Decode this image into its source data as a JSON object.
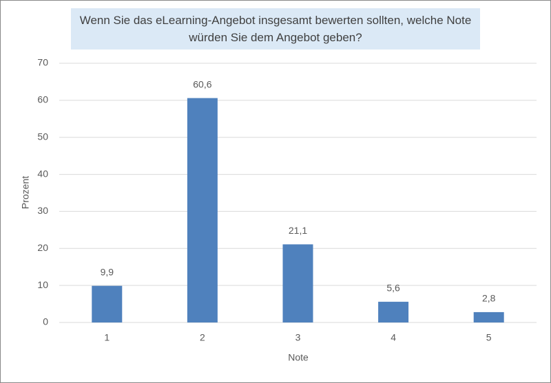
{
  "chart_data": {
    "type": "bar",
    "title": "Wenn Sie das eLearning-Angebot insgesamt bewerten sollten, welche Note würden Sie dem Angebot geben?",
    "x_label": "Note",
    "y_label": "Prozent",
    "categories": [
      "1",
      "2",
      "3",
      "4",
      "5"
    ],
    "values": [
      9.9,
      60.6,
      21.1,
      5.6,
      2.8
    ],
    "value_labels": [
      "9,9",
      "60,6",
      "21,1",
      "5,6",
      "2,8"
    ],
    "color": "#4f81bd",
    "ylim": [
      0,
      70
    ],
    "yticks": [
      0,
      10,
      20,
      30,
      40,
      50,
      60,
      70
    ],
    "grid": true
  }
}
